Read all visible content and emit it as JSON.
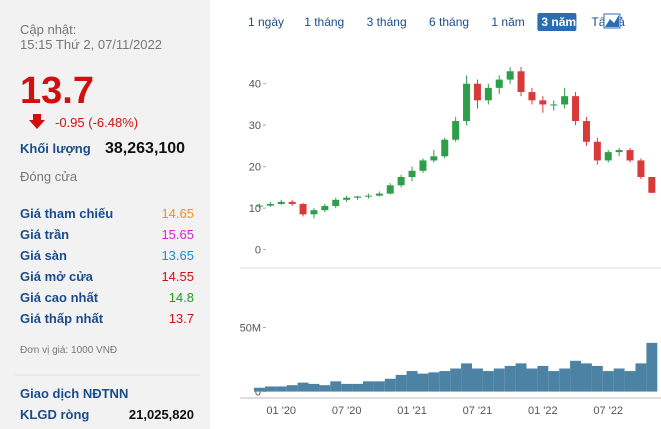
{
  "panel": {
    "updated_label": "Cập nhật:",
    "updated_time": "15:15 Thứ 2, 07/11/2022",
    "price": "13.7",
    "change": "-0.95 (-6.48%)",
    "volume_label": "Khối lượng",
    "volume": "38,263,100",
    "close_label": "Đóng cửa",
    "rows": [
      [
        "Giá tham chiếu",
        "14.65"
      ],
      [
        "Giá trần",
        "15.65"
      ],
      [
        "Giá sàn",
        "13.65"
      ],
      [
        "Giá mở cửa",
        "14.55"
      ],
      [
        "Giá cao nhất",
        "14.8"
      ],
      [
        "Giá thấp nhất",
        "13.7"
      ]
    ],
    "unit_note": "Đơn vị giá: 1000 VNĐ",
    "foreign_label": "Giao dịch NĐTNN",
    "net_label": "KLGD ròng",
    "net_value": "21,025,820"
  },
  "tabs": [
    "1 ngày",
    "1 tháng",
    "3 tháng",
    "6 tháng",
    "1 năm",
    "3 năm",
    "Tất cả"
  ],
  "selected_tab": "3 năm",
  "chart_data": {
    "type": "candlestick",
    "categories": [
      null,
      null,
      "01 '20",
      null,
      null,
      null,
      null,
      null,
      "07 '20",
      null,
      null,
      null,
      null,
      null,
      "01 '21",
      null,
      null,
      null,
      null,
      null,
      "07 '21",
      null,
      null,
      null,
      null,
      null,
      "01 '22",
      null,
      null,
      null,
      null,
      null,
      "07 '22",
      null,
      null,
      null,
      null
    ],
    "open": [
      10.5,
      10.6,
      11,
      11.5,
      11,
      8.5,
      9.5,
      10.5,
      12,
      12.5,
      12.8,
      13,
      13.5,
      15.5,
      17.5,
      19,
      21.5,
      22.5,
      26.5,
      31,
      40,
      36,
      39,
      41,
      43,
      38,
      36,
      35,
      35,
      37,
      31,
      26,
      21.5,
      23.5,
      24,
      21.5,
      17.5
    ],
    "high": [
      11,
      11.5,
      12,
      12,
      11.2,
      10,
      11,
      12.5,
      13,
      13,
      13.5,
      14,
      16,
      18,
      20,
      22,
      24,
      27,
      32,
      42,
      41,
      40,
      42,
      44,
      44,
      39,
      37,
      36,
      39,
      38,
      32,
      27,
      24,
      24.5,
      24.5,
      22,
      17.5
    ],
    "low": [
      10,
      10.3,
      10.8,
      10.5,
      8,
      7.5,
      9,
      10,
      11.5,
      12,
      12.3,
      12.8,
      13.3,
      15,
      16.5,
      18.5,
      21,
      22,
      26,
      30,
      34,
      35,
      37.5,
      40,
      37,
      35,
      33,
      33.5,
      34,
      30,
      25,
      20.5,
      21,
      22.5,
      21,
      17,
      13.6
    ],
    "close": [
      10.6,
      11,
      11.5,
      11,
      8.5,
      9.5,
      10.5,
      12,
      12.5,
      12.8,
      13,
      13.5,
      15.5,
      17.5,
      19,
      21.5,
      22.5,
      26.5,
      31,
      40,
      36,
      39,
      41,
      43,
      38,
      36,
      35,
      35,
      37,
      31,
      26,
      21.5,
      23.5,
      24,
      21.5,
      17.5,
      13.7
    ],
    "up_color": "#2e9e4a",
    "down_color": "#d83a3a",
    "ylim": [
      -3,
      45
    ],
    "yticks": [
      0,
      10,
      20,
      30,
      40
    ],
    "volume": [
      3000000,
      4000000,
      4000000,
      5000000,
      7000000,
      6000000,
      5000000,
      8000000,
      6000000,
      6000000,
      8000000,
      8000000,
      10000000,
      13000000,
      16000000,
      14000000,
      15000000,
      16000000,
      18000000,
      22000000,
      18000000,
      16000000,
      18000000,
      20000000,
      22000000,
      18000000,
      20000000,
      16000000,
      18000000,
      24000000,
      22000000,
      20000000,
      16000000,
      18000000,
      16000000,
      22000000,
      38000000
    ],
    "volume_color": "#4c82a3",
    "y2lim": [
      -5000000,
      87000000
    ],
    "y2ticks": [
      0,
      {
        "value": 50000000,
        "label": "50M"
      }
    ]
  }
}
